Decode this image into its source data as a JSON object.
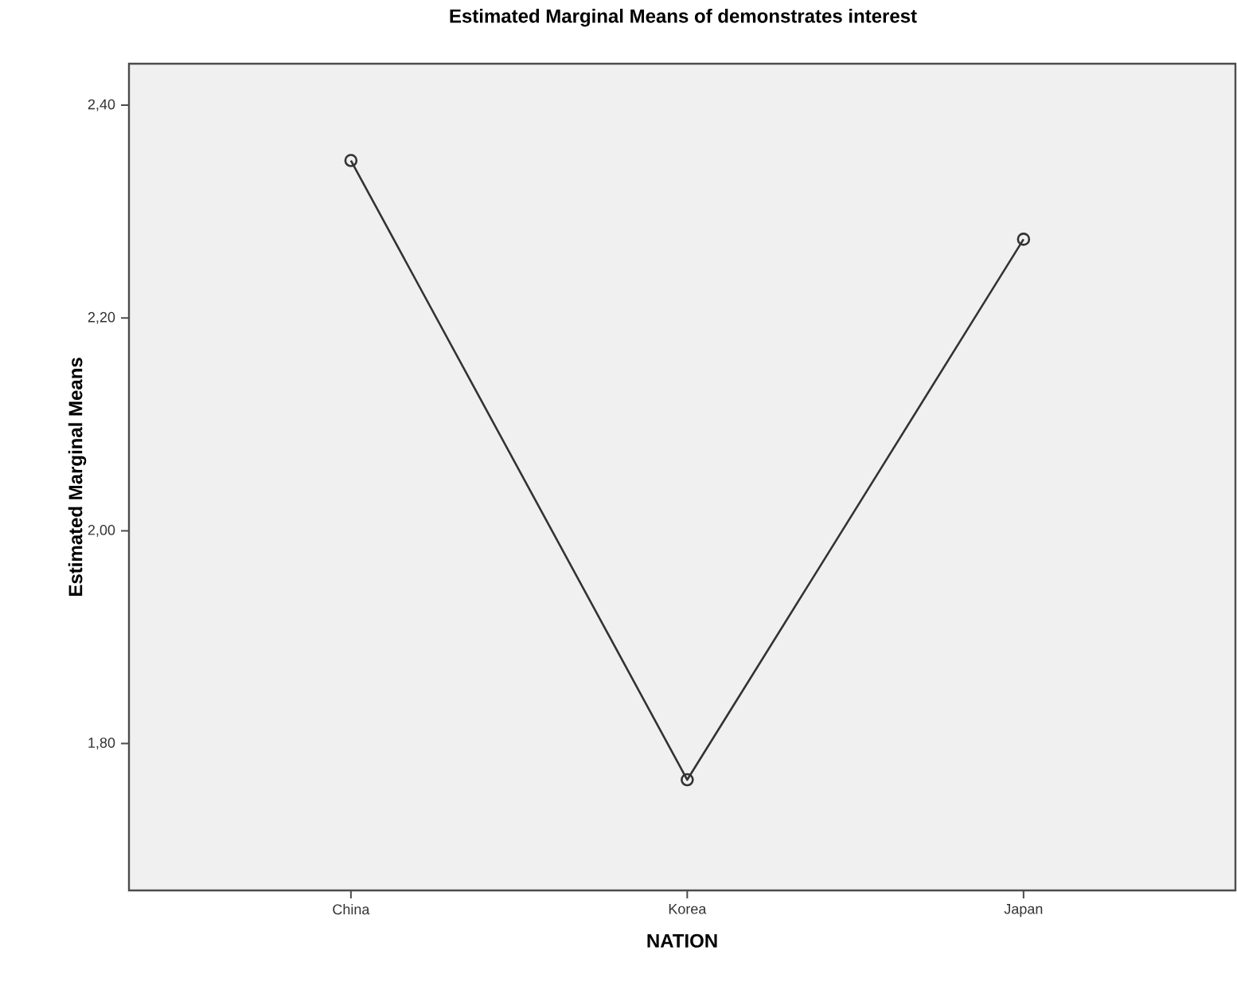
{
  "chart_data": {
    "type": "line",
    "title": "Estimated Marginal Means of demonstrates interest",
    "xlabel": "NATION",
    "ylabel": "Estimated Marginal Means",
    "categories": [
      "China",
      "Korea",
      "Japan"
    ],
    "series": [
      {
        "color": "#333333",
        "values": [
          2.348,
          1.766,
          2.274
        ]
      }
    ],
    "ylim": [
      1.662,
      2.439
    ],
    "yticks": [
      {
        "value": 1.8,
        "label": "1,80"
      },
      {
        "value": 2.0,
        "label": "2,00"
      },
      {
        "value": 2.2,
        "label": "2,20"
      },
      {
        "value": 2.4,
        "label": "2,40"
      }
    ],
    "marker": "circle",
    "line_style": "solid",
    "grid": false,
    "legend": false
  }
}
